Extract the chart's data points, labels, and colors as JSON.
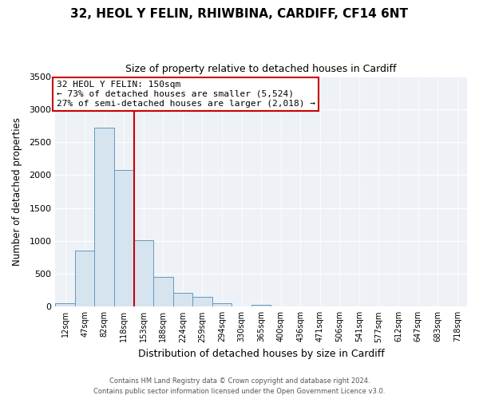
{
  "title": "32, HEOL Y FELIN, RHIWBINA, CARDIFF, CF14 6NT",
  "subtitle": "Size of property relative to detached houses in Cardiff",
  "xlabel": "Distribution of detached houses by size in Cardiff",
  "ylabel": "Number of detached properties",
  "bin_labels": [
    "12sqm",
    "47sqm",
    "82sqm",
    "118sqm",
    "153sqm",
    "188sqm",
    "224sqm",
    "259sqm",
    "294sqm",
    "330sqm",
    "365sqm",
    "400sqm",
    "436sqm",
    "471sqm",
    "506sqm",
    "541sqm",
    "577sqm",
    "612sqm",
    "647sqm",
    "683sqm",
    "718sqm"
  ],
  "bar_heights": [
    55,
    850,
    2720,
    2080,
    1010,
    455,
    205,
    145,
    55,
    0,
    25,
    0,
    0,
    0,
    0,
    0,
    0,
    0,
    0,
    0,
    0
  ],
  "bar_color": "#d6e4f0",
  "bar_edge_color": "#6699bb",
  "annotation_title": "32 HEOL Y FELIN: 150sqm",
  "annotation_line1": "← 73% of detached houses are smaller (5,524)",
  "annotation_line2": "27% of semi-detached houses are larger (2,018) →",
  "vline_color": "#cc0000",
  "ylim": [
    0,
    3500
  ],
  "yticks": [
    0,
    500,
    1000,
    1500,
    2000,
    2500,
    3000,
    3500
  ],
  "footer_line1": "Contains HM Land Registry data © Crown copyright and database right 2024.",
  "footer_line2": "Contains public sector information licensed under the Open Government Licence v3.0.",
  "background_color": "#ffffff",
  "plot_bg_color": "#eef2f7"
}
